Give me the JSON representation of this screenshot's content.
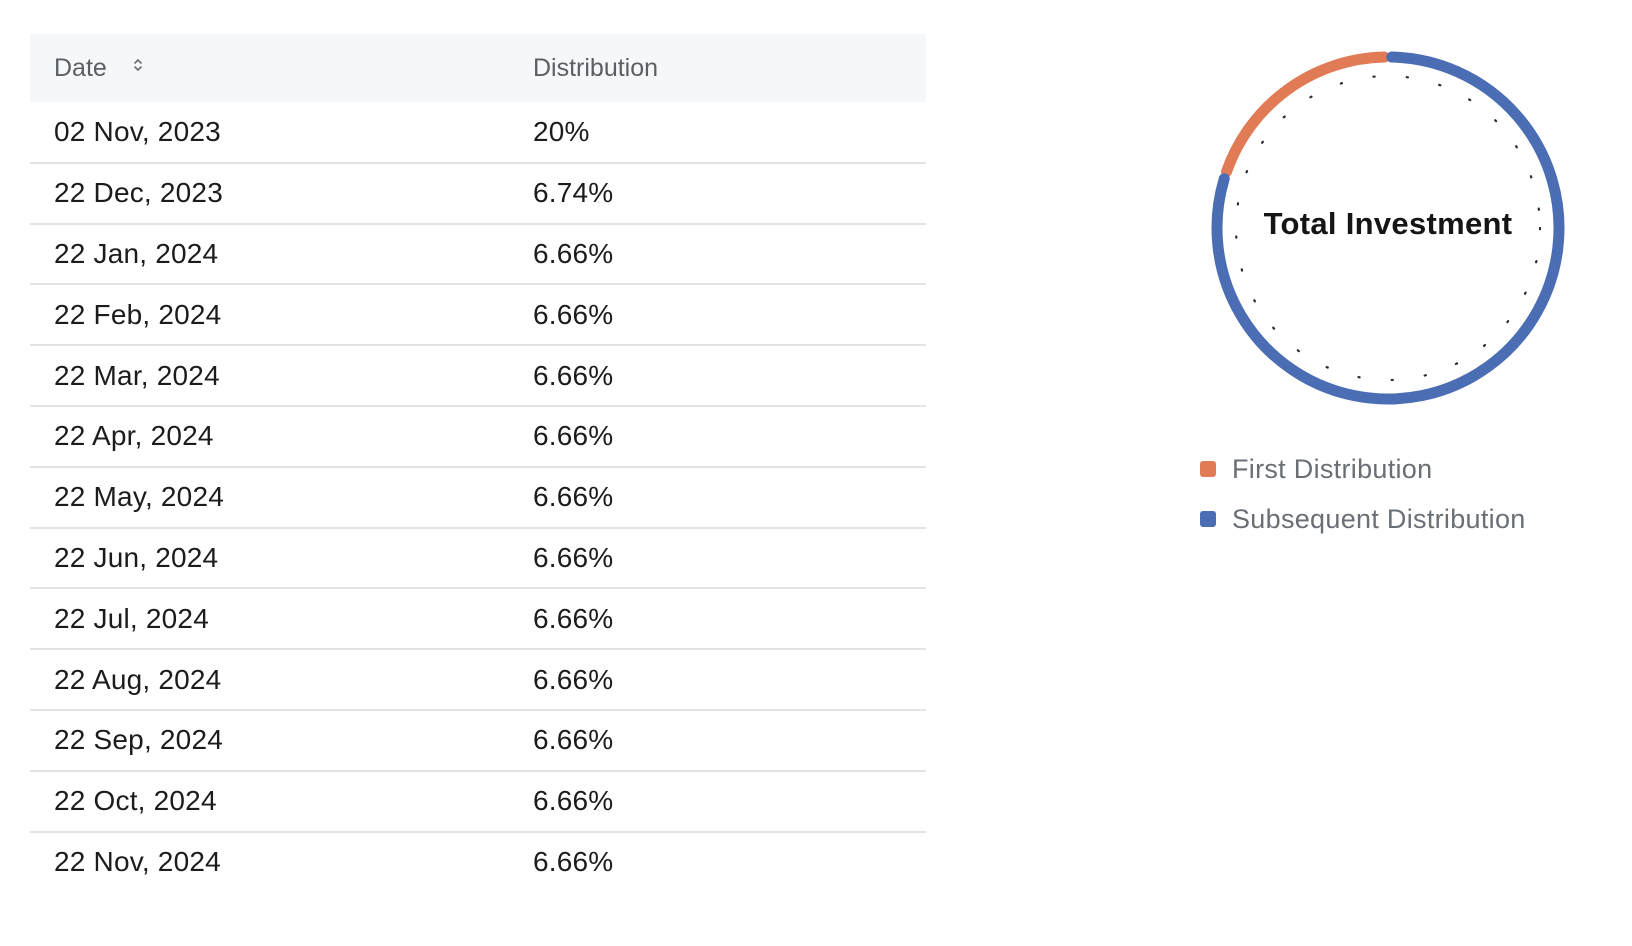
{
  "table": {
    "headers": {
      "date": "Date",
      "distribution": "Distribution"
    },
    "rows": [
      {
        "date": "02 Nov, 2023",
        "distribution": "20%"
      },
      {
        "date": "22 Dec, 2023",
        "distribution": "6.74%"
      },
      {
        "date": "22 Jan, 2024",
        "distribution": "6.66%"
      },
      {
        "date": "22 Feb, 2024",
        "distribution": "6.66%"
      },
      {
        "date": "22 Mar, 2024",
        "distribution": "6.66%"
      },
      {
        "date": "22 Apr, 2024",
        "distribution": "6.66%"
      },
      {
        "date": "22 May, 2024",
        "distribution": "6.66%"
      },
      {
        "date": "22 Jun, 2024",
        "distribution": "6.66%"
      },
      {
        "date": "22 Jul, 2024",
        "distribution": "6.66%"
      },
      {
        "date": "22 Aug, 2024",
        "distribution": "6.66%"
      },
      {
        "date": "22 Sep, 2024",
        "distribution": "6.66%"
      },
      {
        "date": "22 Oct, 2024",
        "distribution": "6.66%"
      },
      {
        "date": "22 Nov, 2024",
        "distribution": "6.66%"
      }
    ],
    "sort_icon": "sort-updown-icon"
  },
  "donut": {
    "center_label": "Total Investment",
    "segments": [
      {
        "name": "First Distribution",
        "percent": 20,
        "color": "#e07b56"
      },
      {
        "name": "Subsequent Distribution",
        "percent": 80,
        "color": "#4a6db3"
      }
    ]
  },
  "colors": {
    "header_bg": "#f6f7f8",
    "row_border": "#e2e4e7",
    "dots": "#2b2b2b"
  }
}
